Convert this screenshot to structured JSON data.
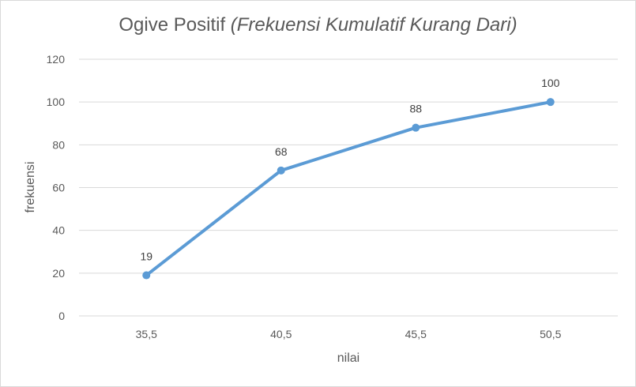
{
  "chart_data": {
    "type": "line",
    "title_main": "Ogive Positif",
    "title_italic": "(Frekuensi Kumulatif Kurang Dari)",
    "xlabel": "nilai",
    "ylabel": "frekuensi",
    "categories": [
      "35,5",
      "40,5",
      "45,5",
      "50,5"
    ],
    "series": [
      {
        "values": [
          19,
          68,
          88,
          100
        ]
      }
    ],
    "data_labels": [
      "19",
      "68",
      "88",
      "100"
    ],
    "ylim": [
      0,
      120
    ],
    "yticks": [
      0,
      20,
      40,
      60,
      80,
      100,
      120
    ],
    "grid": true,
    "legend": "none",
    "colors": {
      "line": "#5b9bd5",
      "grid": "#d9d9d9",
      "text": "#595959"
    }
  }
}
